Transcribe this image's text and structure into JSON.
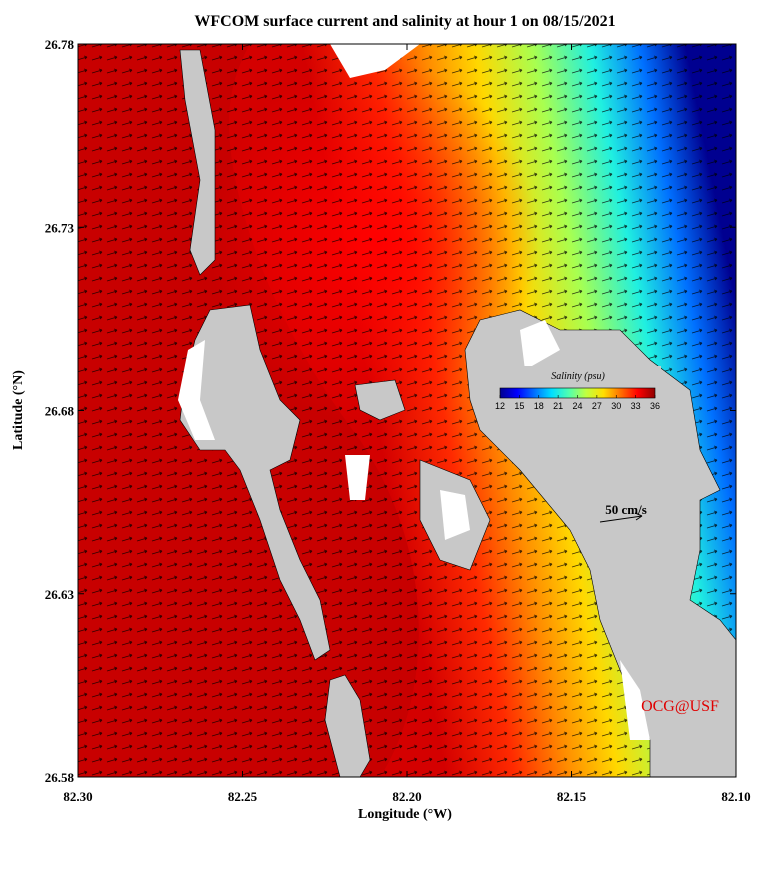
{
  "chart_data": {
    "type": "map",
    "title": "WFCOM surface current and salinity at hour 1 on 08/15/2021",
    "x_label": "Longitude (°W)",
    "y_label": "Latitude (°N)",
    "xlim": [
      82.3,
      82.1
    ],
    "xticks": [
      {
        "value": 82.3,
        "label": "82.30"
      },
      82.25,
      {
        "value": 82.2,
        "label": "82.20"
      },
      82.15,
      {
        "value": 82.1,
        "label": "82.10"
      }
    ],
    "ylim": [
      26.58,
      26.78
    ],
    "yticks": [
      26.58,
      26.63,
      26.68,
      26.73,
      26.78
    ],
    "colorbar": {
      "title": "Salinity (psu)",
      "lim": [
        12,
        36
      ],
      "ticks": [
        12,
        15,
        18,
        21,
        24,
        27,
        30,
        33,
        36
      ],
      "colors": [
        "#00008f",
        "#0000ff",
        "#0070ff",
        "#00dfff",
        "#50ffaf",
        "#c0ff40",
        "#ffdf00",
        "#ff7000",
        "#ff0000",
        "#8f0000"
      ]
    },
    "scale_label": "50 cm/s",
    "credit": "OCG@USF"
  }
}
